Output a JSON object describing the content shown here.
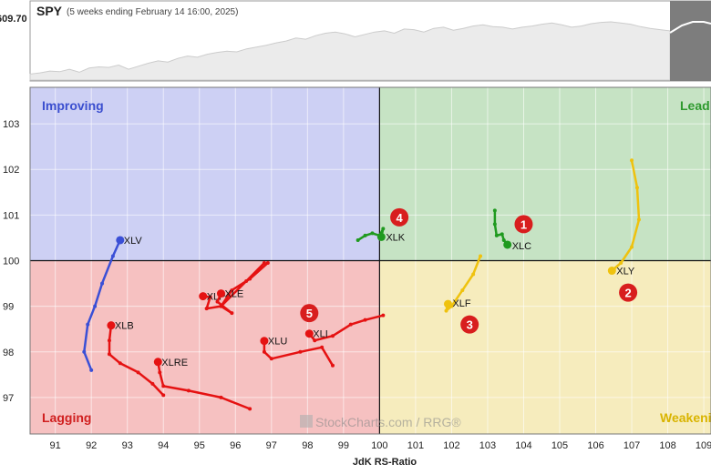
{
  "header": {
    "symbol": "SPY",
    "period": "(5 weeks ending February 14 16:00, 2025)",
    "price_label": "609.70"
  },
  "spy_line": [
    0.1,
    0.12,
    0.15,
    0.14,
    0.18,
    0.13,
    0.2,
    0.22,
    0.21,
    0.25,
    0.18,
    0.23,
    0.28,
    0.32,
    0.3,
    0.36,
    0.4,
    0.38,
    0.43,
    0.46,
    0.48,
    0.47,
    0.52,
    0.55,
    0.58,
    0.62,
    0.65,
    0.7,
    0.68,
    0.74,
    0.78,
    0.8,
    0.77,
    0.72,
    0.76,
    0.8,
    0.82,
    0.78,
    0.85,
    0.84,
    0.8,
    0.86,
    0.88,
    0.83,
    0.86,
    0.9,
    0.92,
    0.89,
    0.88,
    0.85,
    0.88,
    0.9,
    0.93,
    0.95,
    0.92,
    0.88,
    0.9,
    0.94,
    0.96,
    0.97,
    0.95,
    0.93,
    0.89,
    0.86,
    0.84,
    0.82
  ],
  "quadrants": {
    "improving": "Improving",
    "leading": "Leading",
    "lagging": "Lagging",
    "weakening": "Weakening"
  },
  "colors": {
    "improving_bg": "#cdd0f4",
    "leading_bg": "#c6e3c4",
    "lagging_bg": "#f6c1c1",
    "weakening_bg": "#f6ecbd",
    "improving_text": "#3b4fcf",
    "leading_text": "#2e9a2e",
    "lagging_text": "#d01f1f",
    "weakening_text": "#d9b400",
    "badge": "#d81e1e"
  },
  "watermark": "StockCharts.com / RRG®",
  "x_axis": {
    "label": "JdK RS-Ratio",
    "ticks": [
      91,
      92,
      93,
      94,
      95,
      96,
      97,
      98,
      99,
      100,
      101,
      102,
      103,
      104,
      105,
      106,
      107,
      108,
      109
    ]
  },
  "y_axis": {
    "ticks": [
      97,
      98,
      99,
      100,
      101,
      102,
      103
    ]
  },
  "chart_data": {
    "type": "scatter",
    "xlabel": "JdK RS-Ratio",
    "ylabel": "",
    "xlim": [
      90.3,
      109.2
    ],
    "ylim": [
      96.2,
      103.8
    ],
    "center": [
      100,
      100
    ],
    "series": [
      {
        "name": "XLV",
        "color": "#3a4fd6",
        "label_offset": [
          4,
          4
        ],
        "points": [
          [
            92.0,
            97.6
          ],
          [
            91.8,
            98.0
          ],
          [
            91.9,
            98.6
          ],
          [
            92.1,
            99.0
          ],
          [
            92.3,
            99.5
          ],
          [
            92.6,
            100.1
          ],
          [
            92.8,
            100.45
          ]
        ]
      },
      {
        "name": "XLB",
        "color": "#e51212",
        "label_offset": [
          4,
          4
        ],
        "points": [
          [
            94.0,
            97.05
          ],
          [
            93.7,
            97.3
          ],
          [
            93.3,
            97.55
          ],
          [
            92.8,
            97.75
          ],
          [
            92.5,
            97.95
          ],
          [
            92.5,
            98.25
          ],
          [
            92.55,
            98.58
          ]
        ]
      },
      {
        "name": "XLRE",
        "color": "#e51212",
        "label_offset": [
          4,
          4
        ],
        "points": [
          [
            96.4,
            96.75
          ],
          [
            95.6,
            97.0
          ],
          [
            94.7,
            97.15
          ],
          [
            94.0,
            97.25
          ],
          [
            93.9,
            97.55
          ],
          [
            93.85,
            97.78
          ]
        ]
      },
      {
        "name": "XLP",
        "color": "#e51212",
        "label_offset": [
          4,
          4
        ],
        "points": [
          [
            96.8,
            99.95
          ],
          [
            96.3,
            99.55
          ],
          [
            95.6,
            99.0
          ],
          [
            95.2,
            98.95
          ],
          [
            95.3,
            99.2
          ],
          [
            95.1,
            99.22
          ]
        ]
      },
      {
        "name": "XLE",
        "color": "#e51212",
        "label_offset": [
          4,
          4
        ],
        "points": [
          [
            96.9,
            99.95
          ],
          [
            96.4,
            99.6
          ],
          [
            95.9,
            99.35
          ],
          [
            95.6,
            99.0
          ],
          [
            95.9,
            98.85
          ],
          [
            95.5,
            99.1
          ],
          [
            95.6,
            99.28
          ]
        ]
      },
      {
        "name": "XLU",
        "color": "#e51212",
        "label_offset": [
          4,
          4
        ],
        "points": [
          [
            98.7,
            97.7
          ],
          [
            98.4,
            98.1
          ],
          [
            97.8,
            98.0
          ],
          [
            97.0,
            97.85
          ],
          [
            96.8,
            98.0
          ],
          [
            96.8,
            98.24
          ]
        ]
      },
      {
        "name": "XLI",
        "color": "#e51212",
        "label_offset": [
          4,
          4
        ],
        "points": [
          [
            100.1,
            98.8
          ],
          [
            99.6,
            98.7
          ],
          [
            99.2,
            98.6
          ],
          [
            98.7,
            98.35
          ],
          [
            98.2,
            98.25
          ],
          [
            98.05,
            98.4
          ]
        ]
      },
      {
        "name": "XLK",
        "color": "#1f9a1f",
        "label_offset": [
          5,
          4
        ],
        "points": [
          [
            99.4,
            100.45
          ],
          [
            99.6,
            100.55
          ],
          [
            99.8,
            100.6
          ],
          [
            100.0,
            100.55
          ],
          [
            100.1,
            100.7
          ],
          [
            100.05,
            100.52
          ]
        ]
      },
      {
        "name": "XLC",
        "color": "#1f9a1f",
        "label_offset": [
          5,
          5
        ],
        "points": [
          [
            103.2,
            101.1
          ],
          [
            103.2,
            100.8
          ],
          [
            103.25,
            100.55
          ],
          [
            103.4,
            100.58
          ],
          [
            103.45,
            100.45
          ],
          [
            103.55,
            100.35
          ]
        ]
      },
      {
        "name": "XLF",
        "color": "#efc20e",
        "label_offset": [
          5,
          3
        ],
        "points": [
          [
            102.8,
            100.1
          ],
          [
            102.6,
            99.7
          ],
          [
            102.3,
            99.35
          ],
          [
            102.0,
            99.0
          ],
          [
            101.85,
            98.9
          ],
          [
            101.9,
            99.05
          ]
        ]
      },
      {
        "name": "XLY",
        "color": "#efc20e",
        "label_offset": [
          5,
          4
        ],
        "points": [
          [
            107.0,
            102.2
          ],
          [
            107.15,
            101.6
          ],
          [
            107.2,
            100.9
          ],
          [
            107.0,
            100.3
          ],
          [
            106.7,
            99.95
          ],
          [
            106.45,
            99.78
          ]
        ]
      }
    ],
    "badges": [
      {
        "number": "1",
        "x": 104.0,
        "y": 100.8
      },
      {
        "number": "2",
        "x": 106.9,
        "y": 99.3
      },
      {
        "number": "3",
        "x": 102.5,
        "y": 98.6
      },
      {
        "number": "4",
        "x": 100.55,
        "y": 100.95
      },
      {
        "number": "5",
        "x": 98.05,
        "y": 98.85
      }
    ]
  }
}
